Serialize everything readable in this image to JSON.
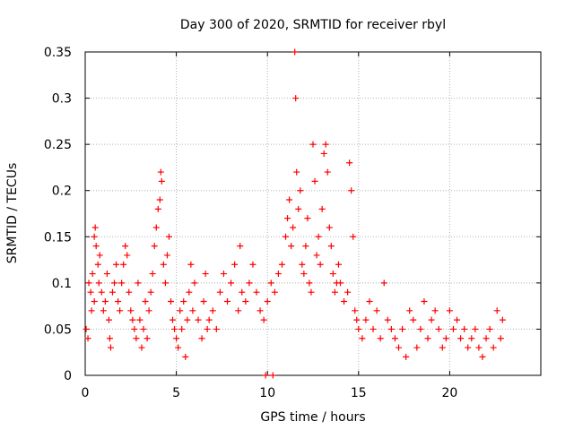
{
  "chart_data": {
    "type": "scatter",
    "title": "Day 300 of 2020, SRMTID for receiver rbyl",
    "xlabel": "GPS time / hours",
    "ylabel": "SRMTID / TECUs",
    "xlim": [
      0,
      25
    ],
    "ylim": [
      0,
      0.35
    ],
    "x_ticks": [
      0,
      5,
      10,
      15,
      20
    ],
    "x_tick_labels": [
      "0",
      "5",
      "10",
      "15",
      "20"
    ],
    "y_ticks": [
      0,
      0.05,
      0.1,
      0.15,
      0.2,
      0.25,
      0.3,
      0.35
    ],
    "y_tick_labels": [
      "0",
      "0.05",
      "0.1",
      "0.15",
      "0.2",
      "0.25",
      "0.3",
      "0.35"
    ],
    "grid": true,
    "marker": "plus",
    "series": [
      {
        "name": "SRMTID",
        "color": "#ff0000",
        "points": [
          [
            0.05,
            0.05
          ],
          [
            0.15,
            0.04
          ],
          [
            0.2,
            0.1
          ],
          [
            0.3,
            0.09
          ],
          [
            0.35,
            0.07
          ],
          [
            0.4,
            0.11
          ],
          [
            0.5,
            0.08
          ],
          [
            0.5,
            0.15
          ],
          [
            0.55,
            0.16
          ],
          [
            0.6,
            0.14
          ],
          [
            0.7,
            0.12
          ],
          [
            0.75,
            0.1
          ],
          [
            0.8,
            0.13
          ],
          [
            0.9,
            0.09
          ],
          [
            1.0,
            0.07
          ],
          [
            1.1,
            0.08
          ],
          [
            1.2,
            0.11
          ],
          [
            1.3,
            0.06
          ],
          [
            1.35,
            0.04
          ],
          [
            1.4,
            0.03
          ],
          [
            1.5,
            0.09
          ],
          [
            1.6,
            0.1
          ],
          [
            1.7,
            0.12
          ],
          [
            1.8,
            0.08
          ],
          [
            1.9,
            0.07
          ],
          [
            2.0,
            0.1
          ],
          [
            2.1,
            0.12
          ],
          [
            2.2,
            0.14
          ],
          [
            2.3,
            0.13
          ],
          [
            2.4,
            0.09
          ],
          [
            2.5,
            0.07
          ],
          [
            2.6,
            0.06
          ],
          [
            2.7,
            0.05
          ],
          [
            2.8,
            0.04
          ],
          [
            2.9,
            0.1
          ],
          [
            3.0,
            0.06
          ],
          [
            3.1,
            0.03
          ],
          [
            3.2,
            0.05
          ],
          [
            3.3,
            0.08
          ],
          [
            3.4,
            0.04
          ],
          [
            3.5,
            0.07
          ],
          [
            3.6,
            0.09
          ],
          [
            3.7,
            0.11
          ],
          [
            3.8,
            0.14
          ],
          [
            3.9,
            0.16
          ],
          [
            4.0,
            0.18
          ],
          [
            4.1,
            0.19
          ],
          [
            4.15,
            0.22
          ],
          [
            4.2,
            0.21
          ],
          [
            4.3,
            0.12
          ],
          [
            4.4,
            0.1
          ],
          [
            4.5,
            0.13
          ],
          [
            4.6,
            0.15
          ],
          [
            4.7,
            0.08
          ],
          [
            4.8,
            0.06
          ],
          [
            4.9,
            0.05
          ],
          [
            5.0,
            0.04
          ],
          [
            5.1,
            0.03
          ],
          [
            5.2,
            0.07
          ],
          [
            5.3,
            0.05
          ],
          [
            5.4,
            0.08
          ],
          [
            5.5,
            0.02
          ],
          [
            5.6,
            0.06
          ],
          [
            5.7,
            0.09
          ],
          [
            5.8,
            0.12
          ],
          [
            5.9,
            0.07
          ],
          [
            6.0,
            0.1
          ],
          [
            6.2,
            0.06
          ],
          [
            6.4,
            0.04
          ],
          [
            6.5,
            0.08
          ],
          [
            6.6,
            0.11
          ],
          [
            6.7,
            0.05
          ],
          [
            6.8,
            0.06
          ],
          [
            7.0,
            0.07
          ],
          [
            7.2,
            0.05
          ],
          [
            7.4,
            0.09
          ],
          [
            7.6,
            0.11
          ],
          [
            7.8,
            0.08
          ],
          [
            8.0,
            0.1
          ],
          [
            8.2,
            0.12
          ],
          [
            8.4,
            0.07
          ],
          [
            8.5,
            0.14
          ],
          [
            8.6,
            0.09
          ],
          [
            8.8,
            0.08
          ],
          [
            9.0,
            0.1
          ],
          [
            9.2,
            0.12
          ],
          [
            9.4,
            0.09
          ],
          [
            9.6,
            0.07
          ],
          [
            9.8,
            0.06
          ],
          [
            10.0,
            0.08
          ],
          [
            10.2,
            0.1
          ],
          [
            10.4,
            0.09
          ],
          [
            10.6,
            0.11
          ],
          [
            10.8,
            0.12
          ],
          [
            11.0,
            0.15
          ],
          [
            11.1,
            0.17
          ],
          [
            11.2,
            0.19
          ],
          [
            11.3,
            0.14
          ],
          [
            11.4,
            0.16
          ],
          [
            11.5,
            0.35
          ],
          [
            11.55,
            0.3
          ],
          [
            11.6,
            0.22
          ],
          [
            11.7,
            0.18
          ],
          [
            11.8,
            0.2
          ],
          [
            11.9,
            0.12
          ],
          [
            12.0,
            0.11
          ],
          [
            12.1,
            0.14
          ],
          [
            12.2,
            0.17
          ],
          [
            12.3,
            0.1
          ],
          [
            12.4,
            0.09
          ],
          [
            12.5,
            0.25
          ],
          [
            12.6,
            0.21
          ],
          [
            12.7,
            0.13
          ],
          [
            12.8,
            0.15
          ],
          [
            12.9,
            0.12
          ],
          [
            13.0,
            0.18
          ],
          [
            13.1,
            0.24
          ],
          [
            13.2,
            0.25
          ],
          [
            13.3,
            0.22
          ],
          [
            13.4,
            0.16
          ],
          [
            13.5,
            0.14
          ],
          [
            13.6,
            0.11
          ],
          [
            13.7,
            0.09
          ],
          [
            13.8,
            0.1
          ],
          [
            13.9,
            0.12
          ],
          [
            14.0,
            0.1
          ],
          [
            14.2,
            0.08
          ],
          [
            14.4,
            0.09
          ],
          [
            14.5,
            0.23
          ],
          [
            14.6,
            0.2
          ],
          [
            14.7,
            0.15
          ],
          [
            14.8,
            0.07
          ],
          [
            14.9,
            0.06
          ],
          [
            15.0,
            0.05
          ],
          [
            15.2,
            0.04
          ],
          [
            15.4,
            0.06
          ],
          [
            15.6,
            0.08
          ],
          [
            15.8,
            0.05
          ],
          [
            16.0,
            0.07
          ],
          [
            16.2,
            0.04
          ],
          [
            16.4,
            0.1
          ],
          [
            16.6,
            0.06
          ],
          [
            16.8,
            0.05
          ],
          [
            17.0,
            0.04
          ],
          [
            17.2,
            0.03
          ],
          [
            17.4,
            0.05
          ],
          [
            17.6,
            0.02
          ],
          [
            17.8,
            0.07
          ],
          [
            18.0,
            0.06
          ],
          [
            18.2,
            0.03
          ],
          [
            18.4,
            0.05
          ],
          [
            18.6,
            0.08
          ],
          [
            18.8,
            0.04
          ],
          [
            19.0,
            0.06
          ],
          [
            19.2,
            0.07
          ],
          [
            19.4,
            0.05
          ],
          [
            19.6,
            0.03
          ],
          [
            19.8,
            0.04
          ],
          [
            20.0,
            0.07
          ],
          [
            20.2,
            0.05
          ],
          [
            20.4,
            0.06
          ],
          [
            20.6,
            0.04
          ],
          [
            20.8,
            0.05
          ],
          [
            21.0,
            0.03
          ],
          [
            21.2,
            0.04
          ],
          [
            21.4,
            0.05
          ],
          [
            21.6,
            0.03
          ],
          [
            21.8,
            0.02
          ],
          [
            22.0,
            0.04
          ],
          [
            22.2,
            0.05
          ],
          [
            22.4,
            0.03
          ],
          [
            22.6,
            0.07
          ],
          [
            22.8,
            0.04
          ],
          [
            22.9,
            0.06
          ],
          [
            9.9,
            0.0
          ],
          [
            10.3,
            0.0
          ]
        ]
      }
    ]
  }
}
